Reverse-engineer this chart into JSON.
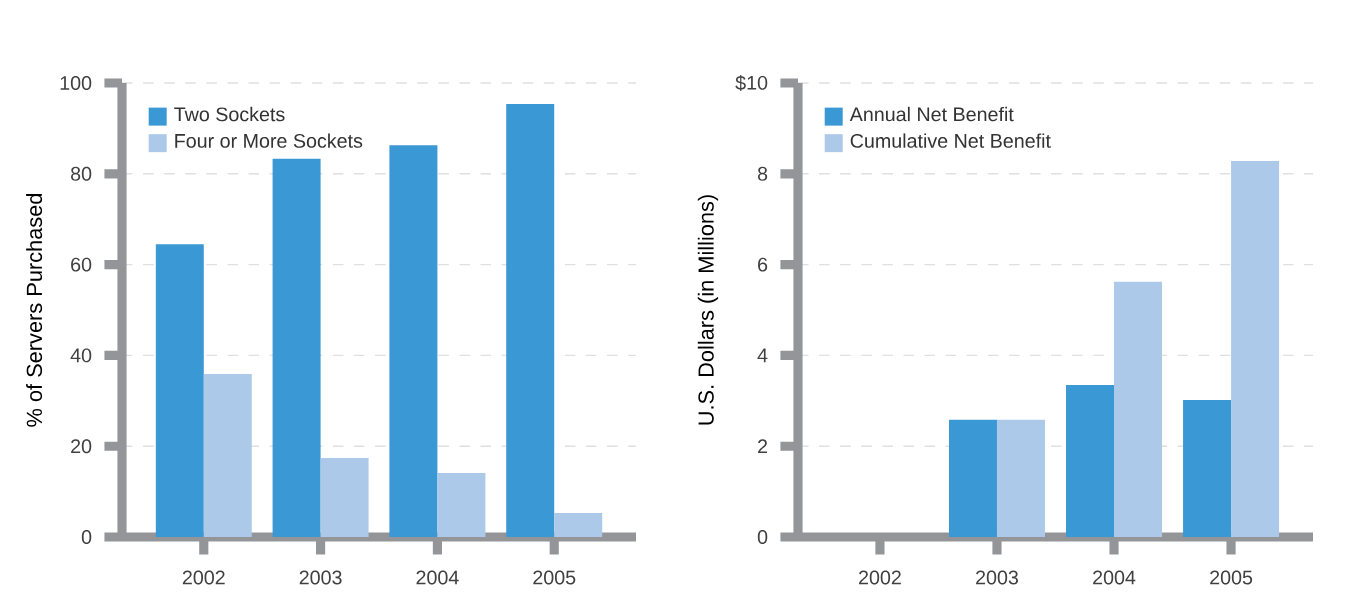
{
  "chart_data": [
    {
      "type": "bar",
      "ylabel": "% of Servers Purchased",
      "categories": [
        "2002",
        "2003",
        "2004",
        "2005"
      ],
      "series": [
        {
          "name": "Two Sockets",
          "color": "#3a98d4",
          "values": [
            64.5,
            83.3,
            86.3,
            95.4
          ]
        },
        {
          "name": "Four or More Sockets",
          "color": "#adc9ea",
          "values": [
            35.9,
            17.4,
            14.1,
            5.3
          ]
        }
      ],
      "ylim": [
        0,
        100
      ],
      "yticks": [
        0,
        20,
        40,
        60,
        80,
        100
      ],
      "grid": "y",
      "legend": "top left"
    },
    {
      "type": "bar",
      "ylabel": "U.S. Dollars (in Millions)",
      "categories": [
        "2002",
        "2003",
        "2004",
        "2005"
      ],
      "series": [
        {
          "name": "Annual Net Benefit",
          "color": "#3a98d4",
          "values": [
            null,
            2.58,
            3.35,
            3.02
          ]
        },
        {
          "name": "Cumulative Net Benefit",
          "color": "#adc9ea",
          "values": [
            null,
            2.58,
            5.62,
            8.28
          ]
        }
      ],
      "ylim": [
        0,
        10
      ],
      "yticks": [
        0,
        2,
        4,
        6,
        8,
        {
          "value": 10,
          "label": "$10"
        }
      ],
      "grid": "y",
      "legend": "top left"
    }
  ]
}
